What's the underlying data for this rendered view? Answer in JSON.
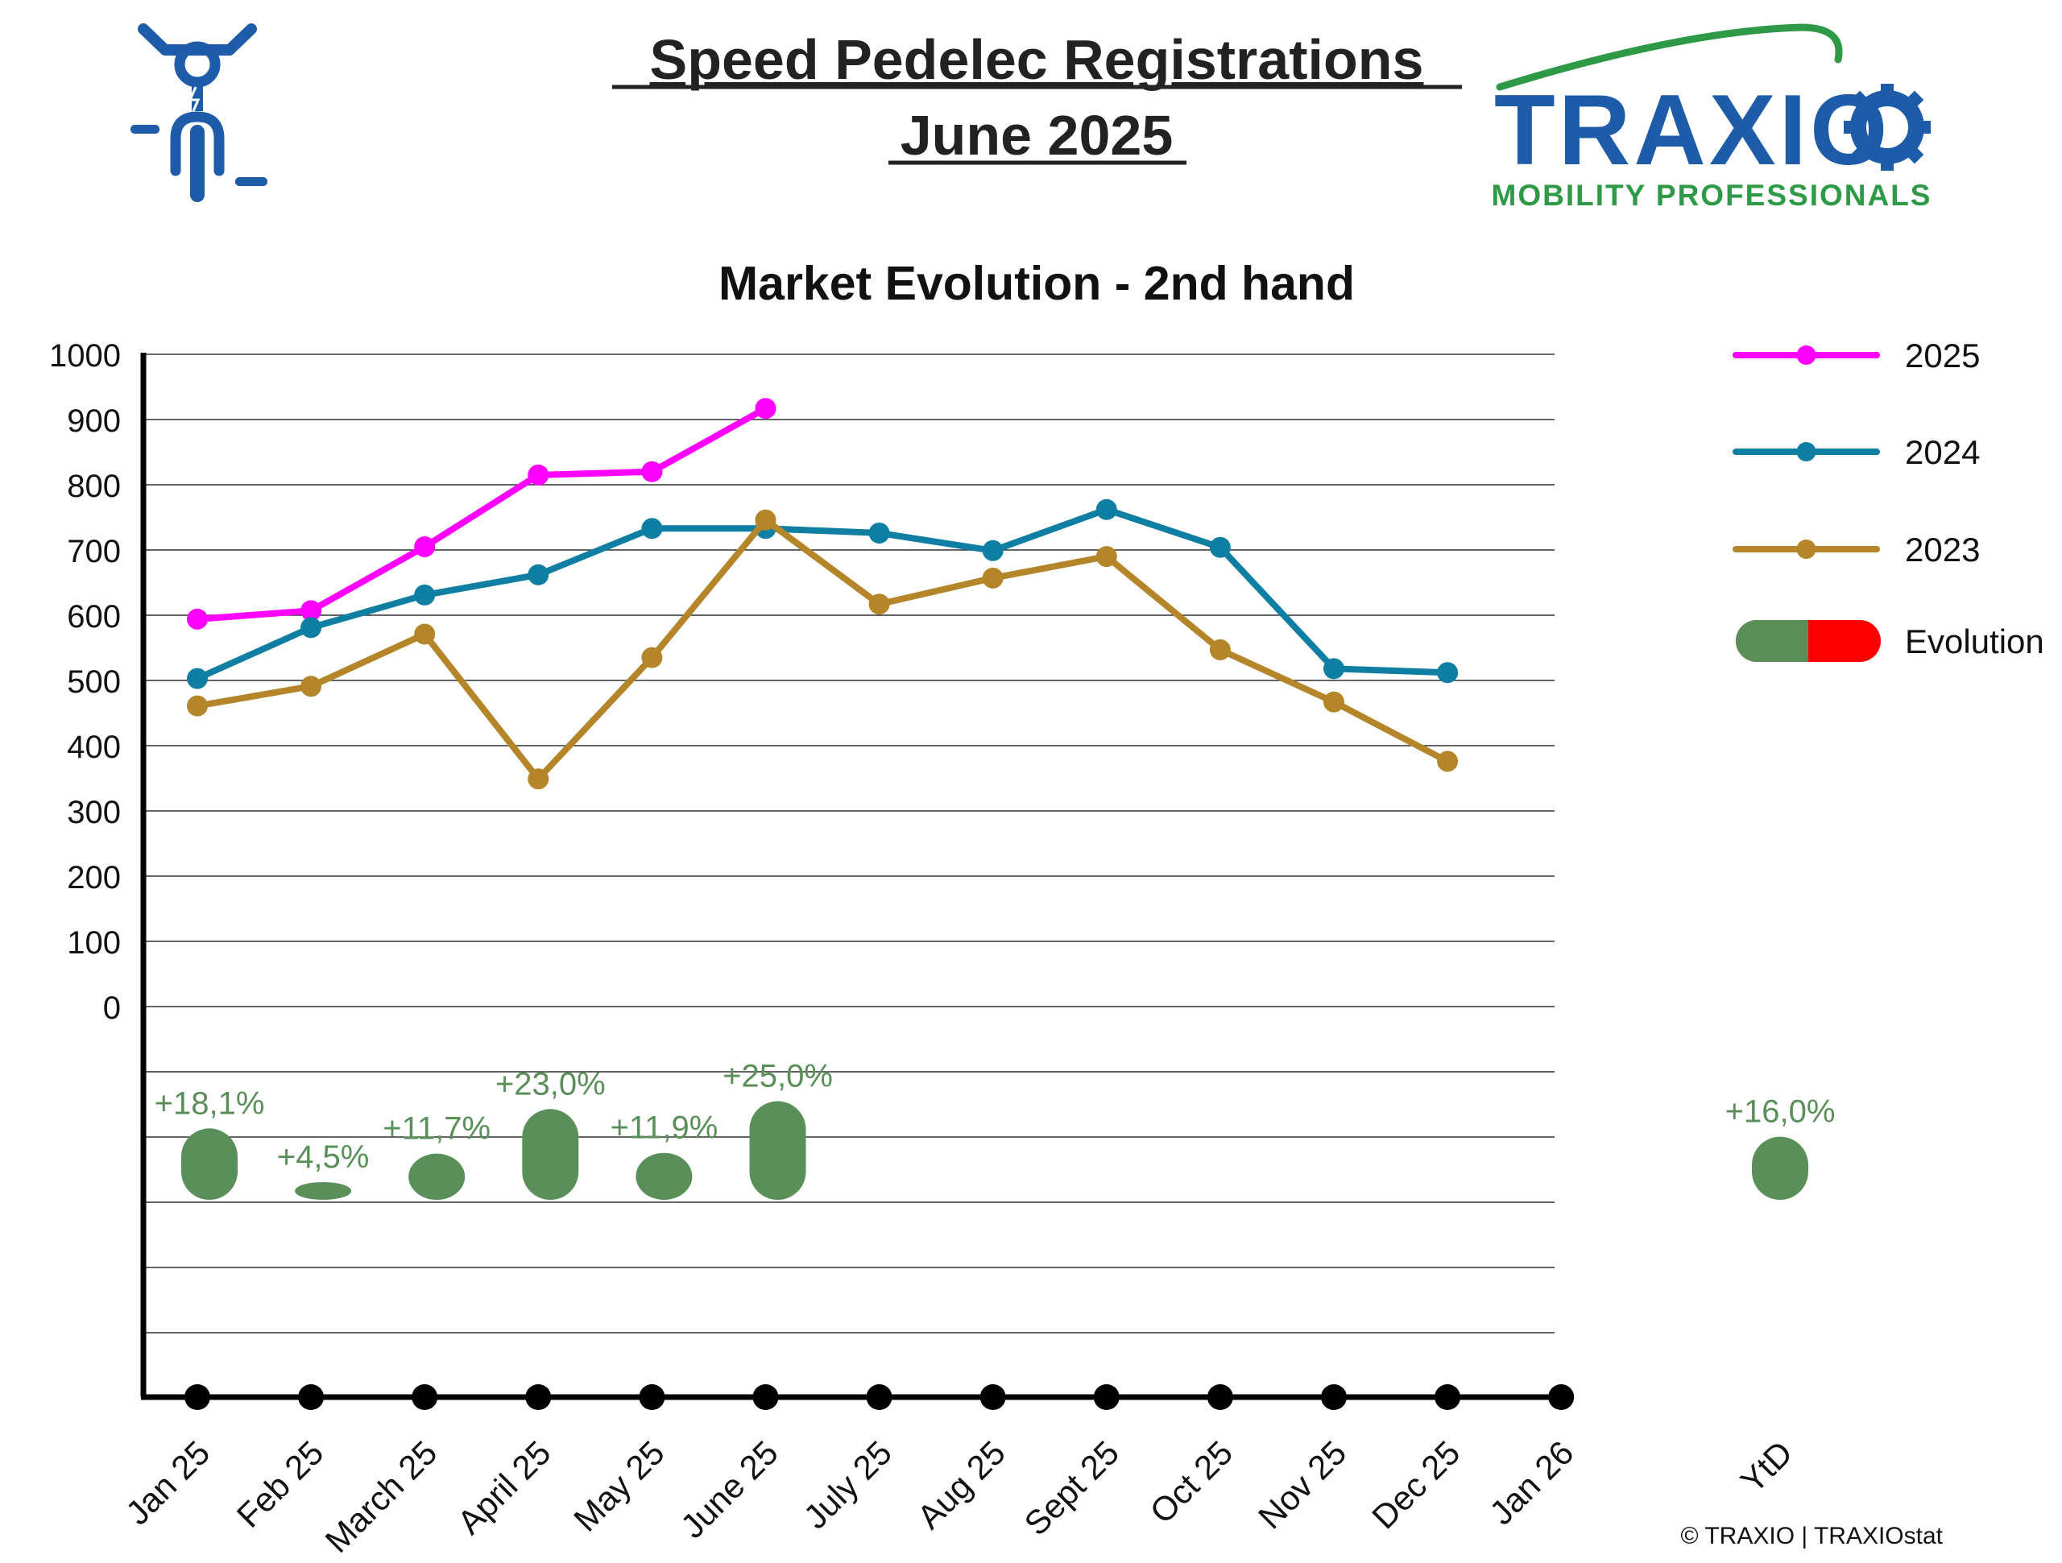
{
  "header": {
    "title_line1": "Speed Pedelec Registrations",
    "title_line2": "June 2025",
    "logo_text": "TRAXIO",
    "logo_tagline": "MOBILITY PROFESSIONALS",
    "copyright": "© TRAXIO | TRAXIOstat"
  },
  "icons": {
    "left": "speed-pedelec-rider-icon",
    "logo": "traxio-logo-gear-icon"
  },
  "colors": {
    "2025": "#FF00FF",
    "2024": "#0E7FA3",
    "2023": "#B5852A",
    "evolution_positive": "#5B8F5A",
    "evolution_negative": "#FF0000",
    "brand_blue": "#1E5BA8",
    "brand_green": "#2E9A48"
  },
  "chart_data": {
    "type": "line",
    "title": "Market Evolution - 2nd hand",
    "xlabel": "",
    "ylabel": "",
    "ylim": [
      0,
      1000
    ],
    "yticks": [
      0,
      100,
      200,
      300,
      400,
      500,
      600,
      700,
      800,
      900,
      1000
    ],
    "grid": true,
    "legend_position": "right",
    "categories": [
      "Jan 25",
      "Feb 25",
      "March 25",
      "April 25",
      "May 25",
      "June 25",
      "July 25",
      "Aug 25",
      "Sept 25",
      "Oct 25",
      "Nov 25",
      "Dec 25",
      "Jan 26"
    ],
    "series": [
      {
        "name": "2025",
        "color": "#FF00FF",
        "values": [
          594,
          607,
          705,
          815,
          820,
          917,
          null,
          null,
          null,
          null,
          null,
          null,
          null
        ]
      },
      {
        "name": "2024",
        "color": "#0E7FA3",
        "values": [
          503,
          581,
          631,
          662,
          733,
          733,
          726,
          699,
          762,
          704,
          518,
          512,
          null
        ]
      },
      {
        "name": "2023",
        "color": "#B5852A",
        "values": [
          461,
          491,
          571,
          349,
          535,
          746,
          617,
          657,
          690,
          547,
          467,
          376,
          null
        ]
      }
    ],
    "evolution": {
      "name": "Evolution",
      "categories": [
        "Jan 25",
        "Feb 25",
        "March 25",
        "April 25",
        "May 25",
        "June 25"
      ],
      "labels": [
        "+18,1%",
        "+4,5%",
        "+11,7%",
        "+23,0%",
        "+11,9%",
        "+25,0%"
      ],
      "values": [
        18.1,
        4.5,
        11.7,
        23.0,
        11.9,
        25.0
      ],
      "ytd_label": "YtD",
      "ytd_value_label": "+16,0%",
      "ytd_value": 16.0
    }
  }
}
